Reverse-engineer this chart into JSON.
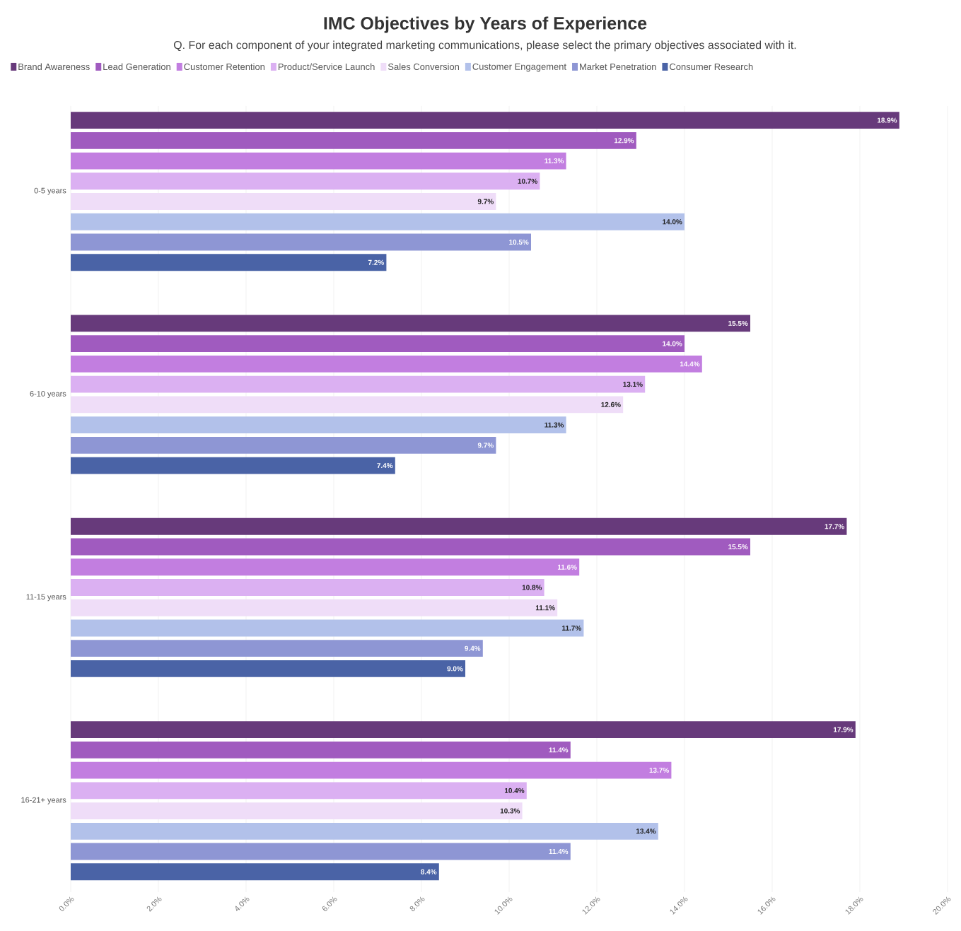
{
  "chart_data": {
    "type": "bar",
    "orientation": "horizontal",
    "title": "IMC Objectives by Years of Experience",
    "subtitle": "Q. For each component of your integrated marketing communications, please select the primary objectives associated with it.",
    "categories": [
      "0-5 years",
      "6-10 years",
      "11-15 years",
      "16-21+ years"
    ],
    "series": [
      {
        "name": "Brand Awareness",
        "color": "#673a7b",
        "values": [
          18.9,
          15.5,
          17.7,
          17.9
        ],
        "value_labels": [
          "18.9%",
          "15.5%",
          "17.7%",
          "17.9%"
        ]
      },
      {
        "name": "Lead Generation",
        "color": "#a05bbf",
        "values": [
          12.9,
          14.0,
          15.5,
          11.4
        ],
        "value_labels": [
          "12.9%",
          "14.0%",
          "15.5%",
          "11.4%"
        ]
      },
      {
        "name": "Customer Retention",
        "color": "#c27ee0",
        "values": [
          11.3,
          14.4,
          11.6,
          13.7
        ],
        "value_labels": [
          "11.3%",
          "14.4%",
          "11.6%",
          "13.7%"
        ]
      },
      {
        "name": "Product/Service Launch",
        "color": "#dbb0f2",
        "values": [
          10.7,
          13.1,
          10.8,
          10.4
        ],
        "value_labels": [
          "10.7%",
          "13.1%",
          "10.8%",
          "10.4%"
        ]
      },
      {
        "name": "Sales Conversion",
        "color": "#efddf8",
        "values": [
          9.7,
          12.6,
          11.1,
          10.3
        ],
        "value_labels": [
          "9.7%",
          "12.6%",
          "11.1%",
          "10.3%"
        ]
      },
      {
        "name": "Customer Engagement",
        "color": "#b2c1ea",
        "values": [
          14.0,
          11.3,
          11.7,
          13.4
        ],
        "value_labels": [
          "14.0%",
          "11.3%",
          "11.7%",
          "13.4%"
        ]
      },
      {
        "name": "Market Penetration",
        "color": "#8e96d4",
        "values": [
          10.5,
          9.7,
          9.4,
          11.4
        ],
        "value_labels": [
          "10.5%",
          "9.7%",
          "9.4%",
          "11.4%"
        ]
      },
      {
        "name": "Consumer Research",
        "color": "#4a63a6",
        "values": [
          7.2,
          7.4,
          9.0,
          8.4
        ],
        "value_labels": [
          "7.2%",
          "7.4%",
          "9.0%",
          "8.4%"
        ]
      }
    ],
    "xlim": [
      0,
      20
    ],
    "xticks": [
      {
        "value": 0,
        "label": "0.0%"
      },
      {
        "value": 2,
        "label": "2.0%"
      },
      {
        "value": 4,
        "label": "4.0%"
      },
      {
        "value": 6,
        "label": "6.0%"
      },
      {
        "value": 8,
        "label": "8.0%"
      },
      {
        "value": 10,
        "label": "10.0%"
      },
      {
        "value": 12,
        "label": "12.0%"
      },
      {
        "value": 14,
        "label": "14.0%"
      },
      {
        "value": 16,
        "label": "16.0%"
      },
      {
        "value": 18,
        "label": "18.0%"
      },
      {
        "value": 20,
        "label": "20.0%"
      }
    ],
    "grid": "x",
    "legend": "top left"
  }
}
